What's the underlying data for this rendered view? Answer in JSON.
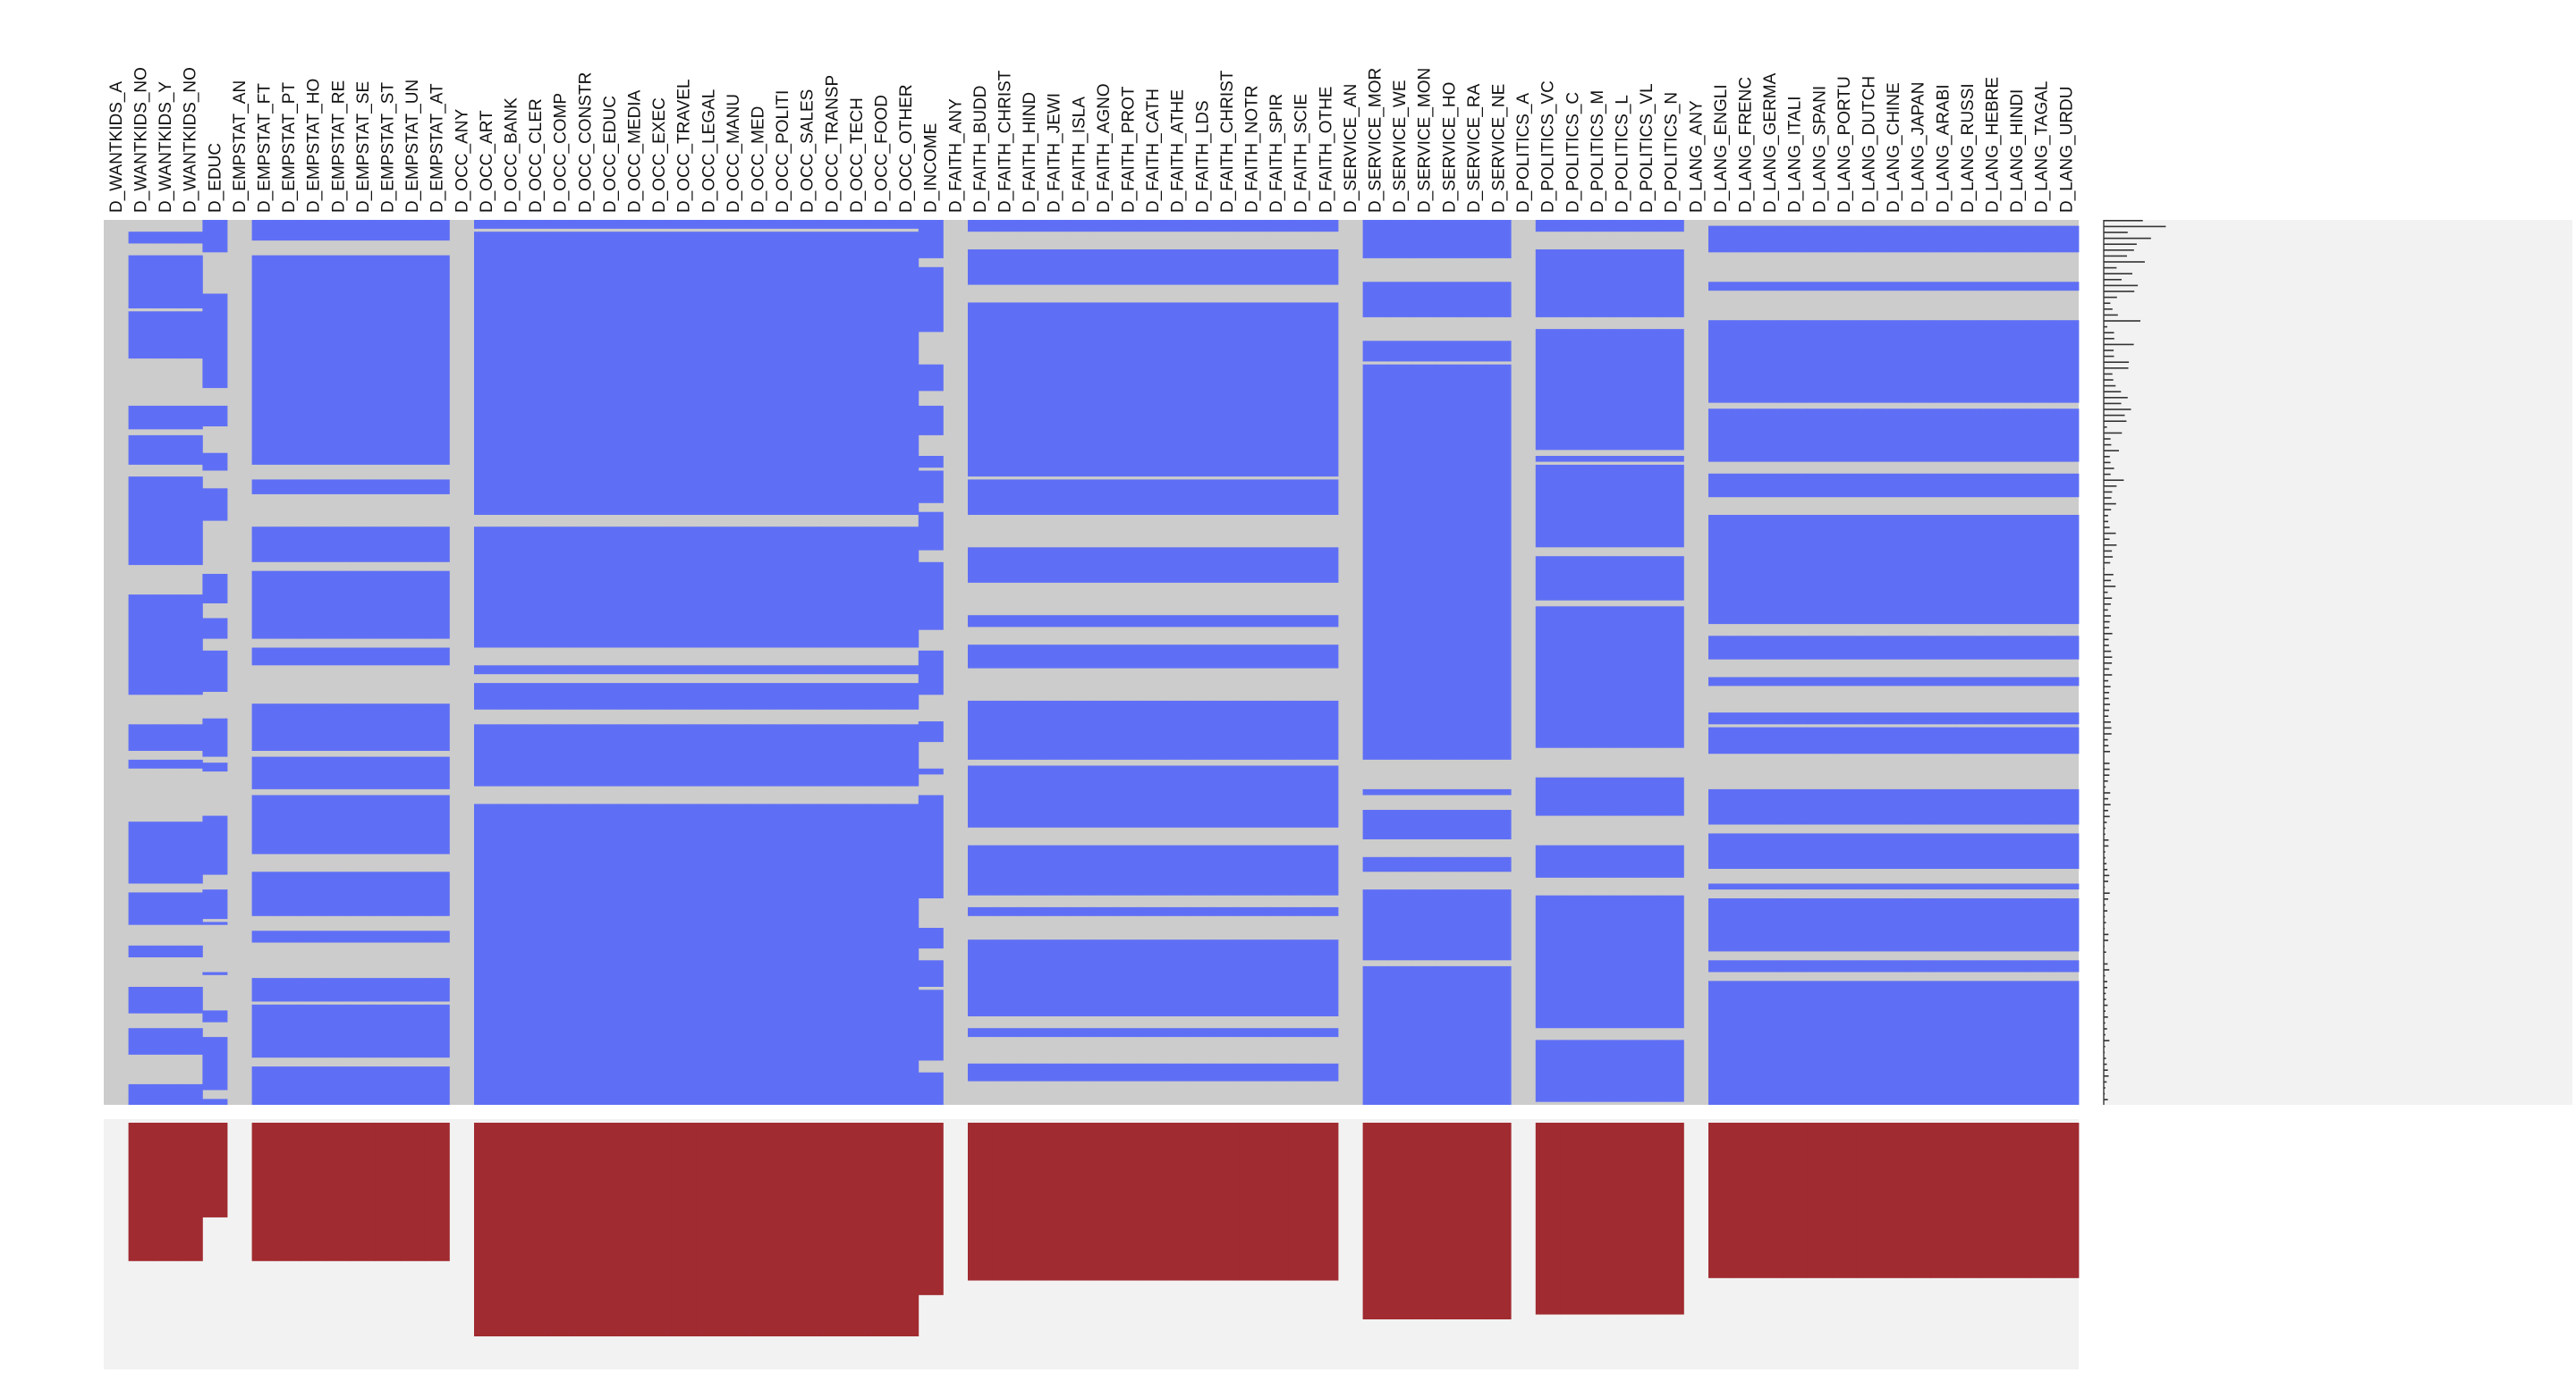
{
  "chart_data": [
    {
      "type": "heatmap",
      "title": "",
      "description_kind": "missingness-matrix",
      "present_color": "#5f6ff5",
      "missing_color": "#cccccc",
      "background_color": "#f2f2f2",
      "columns": [
        "D_WANTKIDS_A",
        "D_WANTKIDS_NO",
        "D_WANTKIDS_Y",
        "D_WANTKIDS_NO",
        "D_EDUC",
        "D_EMPSTAT_AN",
        "D_EMPSTAT_FT",
        "D_EMPSTAT_PT",
        "D_EMPSTAT_HO",
        "D_EMPSTAT_RE",
        "D_EMPSTAT_SE",
        "D_EMPSTAT_ST",
        "D_EMPSTAT_UN",
        "D_EMPSTAT_AT",
        "D_OCC_ANY",
        "D_OCC_ART",
        "D_OCC_BANK",
        "D_OCC_CLER",
        "D_OCC_COMP",
        "D_OCC_CONSTR",
        "D_OCC_EDUC",
        "D_OCC_MEDIA",
        "D_OCC_EXEC",
        "D_OCC_TRAVEL",
        "D_OCC_LEGAL",
        "D_OCC_MANU",
        "D_OCC_MED",
        "D_OCC_POLITI",
        "D_OCC_SALES",
        "D_OCC_TRANSP",
        "D_OCC_TECH",
        "D_OCC_FOOD",
        "D_OCC_OTHER",
        "D_INCOME",
        "D_FAITH_ANY",
        "D_FAITH_BUDD",
        "D_FAITH_CHRIST",
        "D_FAITH_HIND",
        "D_FAITH_JEWI",
        "D_FAITH_ISLA",
        "D_FAITH_AGNO",
        "D_FAITH_PROT",
        "D_FAITH_CATH",
        "D_FAITH_ATHE",
        "D_FAITH_LDS",
        "D_FAITH_CHRIST",
        "D_FAITH_NOTR",
        "D_FAITH_SPIR",
        "D_FAITH_SCIE",
        "D_FAITH_OTHE",
        "D_SERVICE_AN",
        "D_SERVICE_MOR",
        "D_SERVICE_WE",
        "D_SERVICE_MON",
        "D_SERVICE_HO",
        "D_SERVICE_RA",
        "D_SERVICE_NE",
        "D_POLITICS_A",
        "D_POLITICS_VC",
        "D_POLITICS_C",
        "D_POLITICS_M",
        "D_POLITICS_L",
        "D_POLITICS_VL",
        "D_POLITICS_N",
        "D_LANG_ANY",
        "D_LANG_ENGLI",
        "D_LANG_FRENC",
        "D_LANG_GERMA",
        "D_LANG_ITALI",
        "D_LANG_SPANI",
        "D_LANG_PORTU",
        "D_LANG_DUTCH",
        "D_LANG_CHINE",
        "D_LANG_JAPAN",
        "D_LANG_ARABI",
        "D_LANG_RUSSI",
        "D_LANG_HEBRE",
        "D_LANG_HINDI",
        "D_LANG_TAGAL",
        "D_LANG_URDU"
      ],
      "column_groups": [
        {
          "name": "WANTKIDS",
          "count": 4,
          "any_index": 0
        },
        {
          "name": "EDUC",
          "count": 1,
          "any_index": -1
        },
        {
          "name": "EMPSTAT",
          "count": 9,
          "any_index": 0
        },
        {
          "name": "OCC",
          "count": 19,
          "any_index": 0
        },
        {
          "name": "INCOME",
          "count": 1,
          "any_index": -1
        },
        {
          "name": "FAITH",
          "count": 16,
          "any_index": 0
        },
        {
          "name": "SERVICE",
          "count": 7,
          "any_index": 0
        },
        {
          "name": "POLITICS",
          "count": 7,
          "any_index": 0
        },
        {
          "name": "LANG",
          "count": 16,
          "any_index": 0
        }
      ],
      "present_fraction_per_column": [
        0.0,
        0.57,
        0.57,
        0.57,
        0.39,
        0.0,
        0.57,
        0.57,
        0.57,
        0.57,
        0.57,
        0.57,
        0.57,
        0.57,
        0.0,
        0.88,
        0.88,
        0.88,
        0.88,
        0.88,
        0.88,
        0.88,
        0.88,
        0.88,
        0.88,
        0.88,
        0.88,
        0.88,
        0.88,
        0.88,
        0.88,
        0.88,
        0.88,
        0.71,
        0.0,
        0.65,
        0.65,
        0.65,
        0.65,
        0.65,
        0.65,
        0.65,
        0.65,
        0.65,
        0.65,
        0.65,
        0.65,
        0.65,
        0.65,
        0.65,
        0.0,
        0.81,
        0.81,
        0.81,
        0.81,
        0.81,
        0.81,
        0.0,
        0.79,
        0.79,
        0.79,
        0.79,
        0.79,
        0.79,
        0.0,
        0.64,
        0.64,
        0.64,
        0.64,
        0.64,
        0.64,
        0.64,
        0.64,
        0.64,
        0.64,
        0.64,
        0.64,
        0.64,
        0.64,
        0.64
      ],
      "rows": 300,
      "bottom_bar_color": "#a02b30",
      "side_bar_color": "#333333"
    }
  ]
}
